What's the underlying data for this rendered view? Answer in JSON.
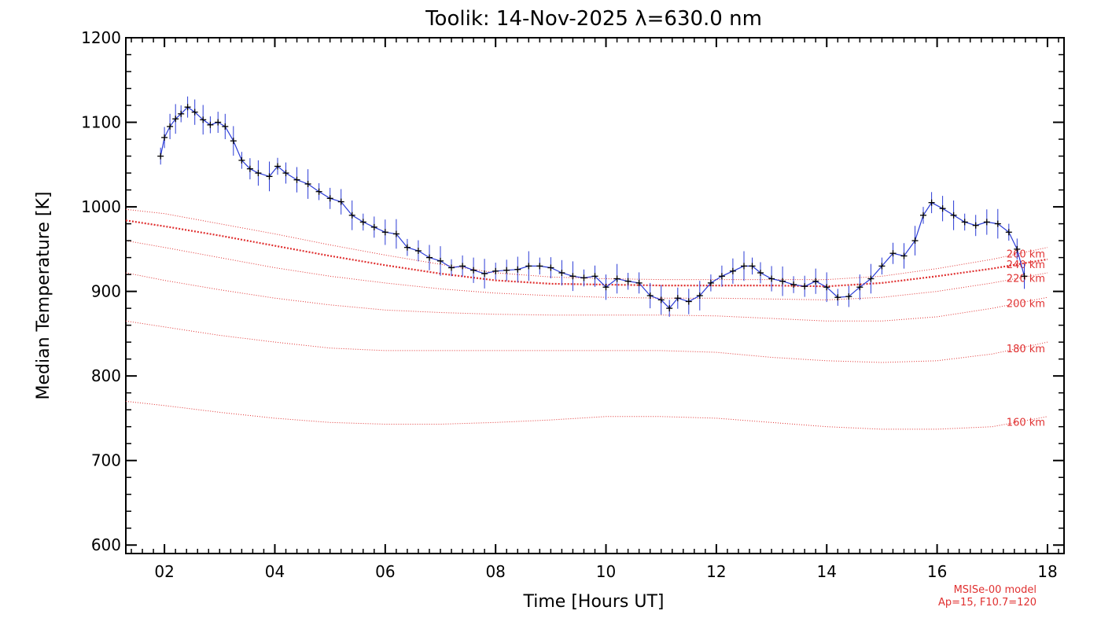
{
  "chart_data": {
    "type": "line",
    "title": "Toolik: 14-Nov-2025 λ=630.0 nm",
    "xlabel": "Time [Hours UT]",
    "ylabel": "Median Temperature [K]",
    "xlim": [
      1.3,
      18.3
    ],
    "ylim": [
      590,
      1200
    ],
    "x_ticks": [
      2,
      4,
      6,
      8,
      10,
      12,
      14,
      16,
      18
    ],
    "x_tick_labels": [
      "02",
      "04",
      "06",
      "08",
      "10",
      "12",
      "14",
      "16",
      "18"
    ],
    "y_ticks": [
      600,
      700,
      800,
      900,
      1000,
      1100,
      1200
    ],
    "y_tick_labels": [
      "600",
      "700",
      "800",
      "900",
      "1000",
      "1100",
      "1200"
    ],
    "colors": {
      "data": "#000000",
      "errorbar": "#2a3bd6",
      "model": "#e03030"
    },
    "series": [
      {
        "x": [
          1.93,
          2.0,
          2.1,
          2.2,
          2.3,
          2.42,
          2.55,
          2.7,
          2.83,
          2.97,
          3.1,
          3.25,
          3.4,
          3.55,
          3.7,
          3.9,
          4.05,
          4.2,
          4.4,
          4.6,
          4.8,
          5.0,
          5.2,
          5.4,
          5.6,
          5.8,
          6.0,
          6.2,
          6.4,
          6.6,
          6.8,
          7.0,
          7.2,
          7.4,
          7.6,
          7.8,
          8.0,
          8.2,
          8.4,
          8.6,
          8.8,
          9.0,
          9.2,
          9.4,
          9.6,
          9.8,
          10.0,
          10.2,
          10.4,
          10.6,
          10.8,
          11.0,
          11.15,
          11.3,
          11.5,
          11.7,
          11.9,
          12.1,
          12.3,
          12.5,
          12.65,
          12.8,
          13.0,
          13.2,
          13.4,
          13.6,
          13.8,
          14.0,
          14.2,
          14.4,
          14.6,
          14.8,
          15.0,
          15.2,
          15.4,
          15.6,
          15.75,
          15.9,
          16.1,
          16.3,
          16.5,
          16.7,
          16.9,
          17.1,
          17.3,
          17.45,
          17.58
        ],
        "values": [
          1060,
          1082,
          1095,
          1104,
          1110,
          1118,
          1112,
          1103,
          1097,
          1100,
          1095,
          1078,
          1055,
          1045,
          1040,
          1036,
          1048,
          1040,
          1032,
          1027,
          1018,
          1010,
          1006,
          990,
          982,
          976,
          970,
          968,
          952,
          948,
          940,
          936,
          928,
          930,
          925,
          921,
          924,
          925,
          926,
          930,
          930,
          928,
          922,
          918,
          916,
          918,
          905,
          915,
          912,
          910,
          895,
          890,
          880,
          892,
          888,
          895,
          910,
          918,
          924,
          930,
          930,
          922,
          915,
          912,
          908,
          906,
          912,
          905,
          893,
          894,
          905,
          915,
          930,
          945,
          942,
          960,
          990,
          1005,
          998,
          990,
          982,
          978,
          982,
          980,
          970,
          950,
          918
        ]
      }
    ],
    "model_curves": [
      {
        "label": "160 km",
        "x": [
          1.3,
          2,
          3,
          4,
          5,
          6,
          7,
          8,
          9,
          10,
          11,
          12,
          13,
          14,
          15,
          16,
          17,
          18
        ],
        "values": [
          770,
          765,
          757,
          750,
          745,
          743,
          743,
          745,
          748,
          752,
          752,
          750,
          745,
          740,
          737,
          737,
          740,
          752
        ]
      },
      {
        "label": "180 km",
        "x": [
          1.3,
          2,
          3,
          4,
          5,
          6,
          7,
          8,
          9,
          10,
          11,
          12,
          13,
          14,
          15,
          16,
          17,
          18
        ],
        "values": [
          865,
          858,
          848,
          840,
          833,
          830,
          830,
          830,
          830,
          830,
          830,
          828,
          822,
          818,
          816,
          818,
          826,
          840
        ]
      },
      {
        "label": "200 km",
        "x": [
          1.3,
          2,
          3,
          4,
          5,
          6,
          7,
          8,
          9,
          10,
          11,
          12,
          13,
          14,
          15,
          16,
          17,
          18
        ],
        "values": [
          922,
          913,
          902,
          892,
          884,
          878,
          875,
          873,
          872,
          872,
          872,
          871,
          868,
          865,
          865,
          870,
          880,
          893
        ]
      },
      {
        "label": "220 km",
        "x": [
          1.3,
          2,
          3,
          4,
          5,
          6,
          7,
          8,
          9,
          10,
          11,
          12,
          13,
          14,
          15,
          16,
          17,
          18
        ],
        "values": [
          960,
          952,
          940,
          928,
          918,
          910,
          903,
          898,
          895,
          893,
          892,
          892,
          891,
          890,
          893,
          900,
          910,
          922
        ]
      },
      {
        "label": "240 km",
        "x": [
          1.3,
          2,
          3,
          4,
          5,
          6,
          7,
          8,
          9,
          10,
          11,
          12,
          13,
          14,
          15,
          16,
          17,
          18
        ],
        "values": [
          984,
          977,
          966,
          954,
          942,
          931,
          921,
          913,
          909,
          908,
          907,
          907,
          907,
          906,
          910,
          918,
          927,
          938
        ],
        "emphasis": true
      },
      {
        "label": "260 km",
        "x": [
          1.3,
          2,
          3,
          4,
          5,
          6,
          7,
          8,
          9,
          10,
          11,
          12,
          13,
          14,
          15,
          16,
          17,
          18
        ],
        "values": [
          997,
          992,
          980,
          968,
          955,
          943,
          932,
          922,
          917,
          915,
          914,
          914,
          914,
          914,
          918,
          927,
          938,
          952
        ]
      }
    ],
    "model_label_lines": [
      "MSISe-00 model",
      "Ap=15, F10.7=120"
    ]
  }
}
